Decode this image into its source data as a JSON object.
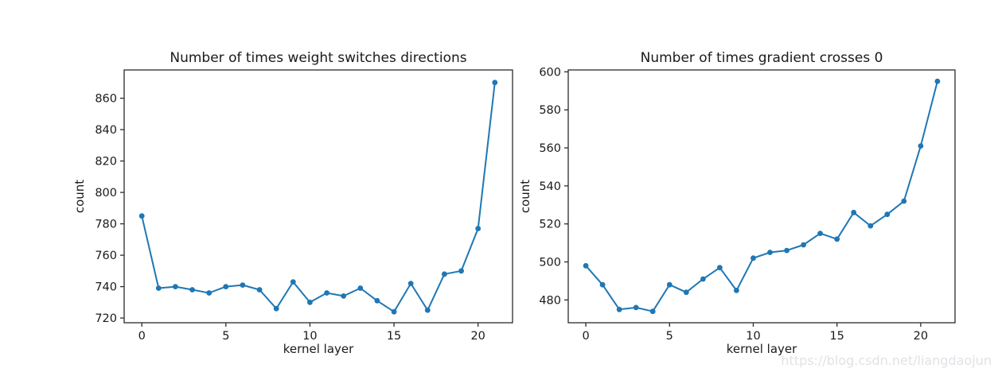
{
  "figure": {
    "background": "#ffffff",
    "watermark": "https://blog.csdn.net/liangdaojun",
    "line_color": "#1f77b4",
    "text_color": "#1a1a1a",
    "spine_color": "#2b2b2b"
  },
  "chart_data": [
    {
      "type": "line",
      "title": "Number of times weight switches directions",
      "xlabel": "kernel layer",
      "ylabel": "count",
      "x": [
        0,
        1,
        2,
        3,
        4,
        5,
        6,
        7,
        8,
        9,
        10,
        11,
        12,
        13,
        14,
        15,
        16,
        17,
        18,
        19,
        20,
        21
      ],
      "values": [
        785,
        739,
        740,
        738,
        736,
        740,
        741,
        738,
        726,
        743,
        730,
        736,
        734,
        739,
        731,
        724,
        742,
        725,
        748,
        750,
        777,
        870
      ],
      "xlim": [
        -1.05,
        22.05
      ],
      "ylim": [
        717,
        878
      ],
      "xticks": [
        0,
        5,
        10,
        15,
        20
      ],
      "yticks": [
        720,
        740,
        760,
        780,
        800,
        820,
        840,
        860
      ],
      "grid": false,
      "legend": "none",
      "marker": "circle"
    },
    {
      "type": "line",
      "title": "Number of times gradient crosses 0",
      "xlabel": "kernel layer",
      "ylabel": "count",
      "x": [
        0,
        1,
        2,
        3,
        4,
        5,
        6,
        7,
        8,
        9,
        10,
        11,
        12,
        13,
        14,
        15,
        16,
        17,
        18,
        19,
        20,
        21
      ],
      "values": [
        498,
        488,
        475,
        476,
        474,
        488,
        484,
        491,
        497,
        485,
        502,
        505,
        506,
        509,
        515,
        512,
        526,
        519,
        525,
        532,
        561,
        595
      ],
      "xlim": [
        -1.05,
        22.05
      ],
      "ylim": [
        468,
        601
      ],
      "xticks": [
        0,
        5,
        10,
        15,
        20
      ],
      "yticks": [
        480,
        500,
        520,
        540,
        560,
        580,
        600
      ],
      "grid": false,
      "legend": "none",
      "marker": "circle"
    }
  ]
}
